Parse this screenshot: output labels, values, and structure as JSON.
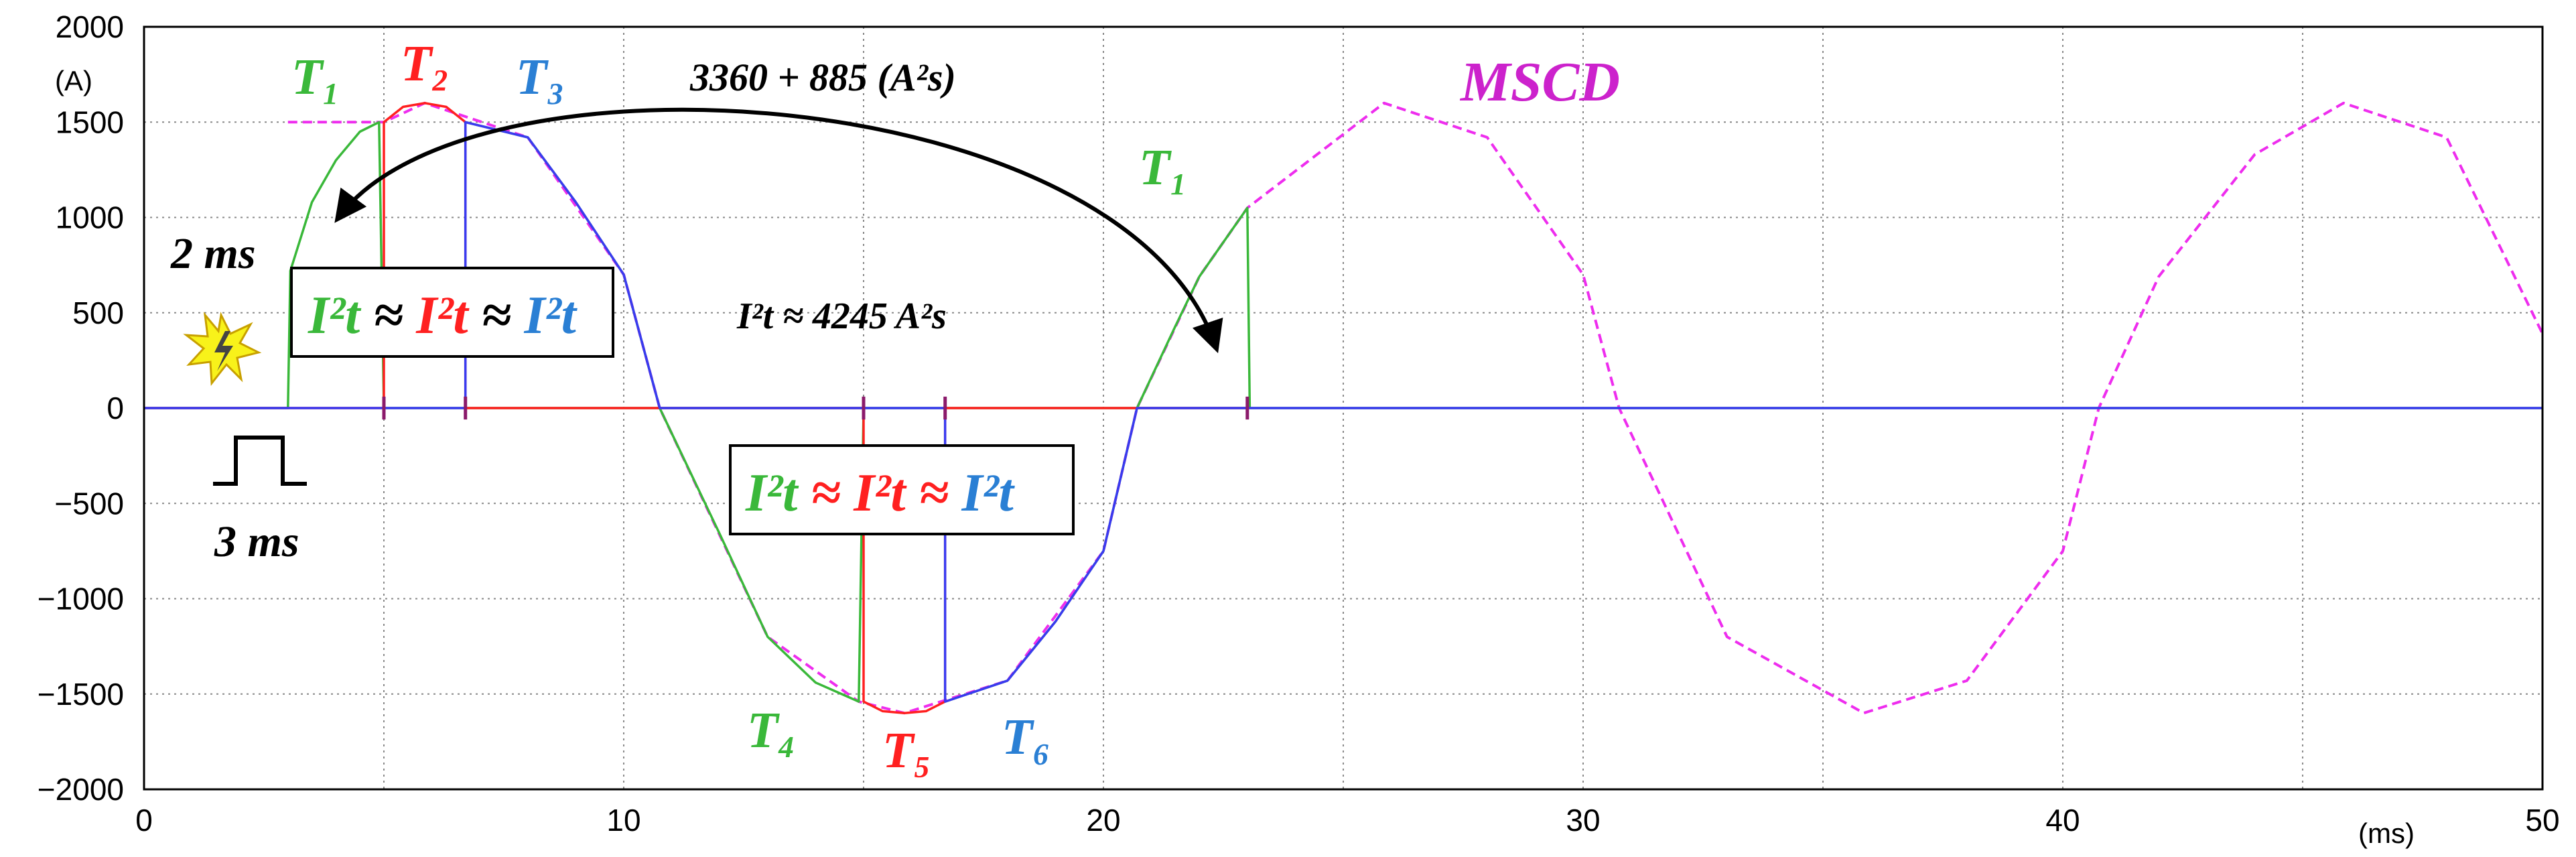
{
  "chart_data": {
    "type": "line",
    "title": "",
    "xlabel": "",
    "ylabel": "",
    "x_unit": "(ms)",
    "y_unit": "(A)",
    "xlim": [
      0,
      50
    ],
    "ylim": [
      -2000,
      2000
    ],
    "x_ticks": [
      "0",
      "10",
      "20",
      "30",
      "40",
      "50"
    ],
    "y_ticks": [
      "2000",
      "1500",
      "1000",
      "500",
      "0",
      "−500",
      "−1000",
      "−1500",
      "−2000"
    ],
    "grid": true,
    "series": [
      {
        "name": "MSCD",
        "color": "#ee2dee",
        "style": "dashed",
        "points": [
          [
            3,
            1500
          ],
          [
            5,
            1500
          ],
          [
            5.85,
            1600
          ],
          [
            8,
            1420
          ],
          [
            10,
            700
          ],
          [
            10.75,
            0
          ],
          [
            13,
            -1200
          ],
          [
            14.9,
            -1540
          ],
          [
            15.85,
            -1600
          ],
          [
            18,
            -1430
          ],
          [
            20,
            -750
          ],
          [
            20.7,
            0
          ],
          [
            22,
            690
          ],
          [
            23,
            1050
          ],
          [
            25.85,
            1600
          ],
          [
            28,
            1420
          ],
          [
            30,
            700
          ],
          [
            30.75,
            0
          ],
          [
            33,
            -1200
          ],
          [
            35.85,
            -1600
          ],
          [
            38,
            -1430
          ],
          [
            40,
            -750
          ],
          [
            40.75,
            0
          ],
          [
            42,
            690
          ],
          [
            44,
            1330
          ],
          [
            45.85,
            1600
          ],
          [
            48,
            1420
          ],
          [
            50,
            390
          ]
        ]
      },
      {
        "name": "T1",
        "color": "#3ab83a",
        "style": "solid",
        "points": [
          [
            0,
            0
          ],
          [
            3,
            0
          ],
          [
            3.05,
            720
          ],
          [
            3.5,
            1080
          ],
          [
            4,
            1300
          ],
          [
            4.5,
            1450
          ],
          [
            4.9,
            1500
          ],
          [
            5,
            0
          ],
          [
            5.3,
            0
          ],
          [
            15,
            0
          ],
          [
            23,
            0
          ]
        ]
      },
      {
        "name": "T4",
        "color": "#3ab83a",
        "style": "solid",
        "points": [
          [
            6.7,
            0
          ],
          [
            6.7,
            1500
          ],
          [
            8,
            1420
          ],
          [
            9,
            1080
          ],
          [
            10,
            700
          ],
          [
            10.75,
            0
          ],
          [
            12,
            -660
          ],
          [
            13,
            -1200
          ],
          [
            14,
            -1440
          ],
          [
            14.9,
            -1540
          ],
          [
            15,
            0
          ]
        ]
      },
      {
        "name": "T1",
        "color": "#3ab83a",
        "style": "solid",
        "points": [
          [
            16.7,
            0
          ],
          [
            16.7,
            -1540
          ],
          [
            18,
            -1430
          ],
          [
            19,
            -1120
          ],
          [
            20,
            -750
          ],
          [
            20.7,
            0
          ],
          [
            21.5,
            430
          ],
          [
            22,
            690
          ],
          [
            22.5,
            870
          ],
          [
            23,
            1050
          ],
          [
            23.05,
            0
          ],
          [
            50,
            0
          ]
        ]
      },
      {
        "name": "T2",
        "color": "#ff2020",
        "style": "solid",
        "points": [
          [
            0,
            0
          ],
          [
            5,
            0
          ],
          [
            5,
            1500
          ],
          [
            5.4,
            1580
          ],
          [
            5.85,
            1600
          ],
          [
            6.3,
            1580
          ],
          [
            6.7,
            1500
          ],
          [
            6.7,
            0
          ],
          [
            15,
            0
          ],
          [
            15,
            -1540
          ],
          [
            15.4,
            -1590
          ],
          [
            15.85,
            -1600
          ],
          [
            16.3,
            -1590
          ],
          [
            16.7,
            -1540
          ],
          [
            16.7,
            0
          ],
          [
            23,
            0
          ]
        ]
      },
      {
        "name": "T3",
        "color": "#3a3af0",
        "style": "solid",
        "points": [
          [
            0,
            0
          ],
          [
            6.7,
            0
          ],
          [
            6.7,
            1500
          ],
          [
            8,
            1420
          ],
          [
            9,
            1080
          ],
          [
            10,
            700
          ],
          [
            10.75,
            0
          ],
          [
            15,
            0
          ],
          [
            16.7,
            0
          ],
          [
            16.7,
            -1540
          ],
          [
            18,
            -1430
          ],
          [
            19,
            -1120
          ],
          [
            20,
            -750
          ],
          [
            20.7,
            0
          ],
          [
            50,
            0
          ]
        ]
      }
    ],
    "event_marks": [
      {
        "x": 5,
        "color": "#8b1a6b"
      },
      {
        "x": 6.7,
        "color": "#8b1a6b"
      },
      {
        "x": 15,
        "color": "#8b1a6b"
      },
      {
        "x": 16.7,
        "color": "#8b1a6b"
      },
      {
        "x": 23,
        "color": "#8b1a6b"
      }
    ]
  },
  "annotations": {
    "t1_a": "T₁",
    "t2_a": "T₂",
    "t3_a": "T₃",
    "t1_b": "T₁",
    "t4": "T₄",
    "t5": "T₅",
    "t6": "T₆",
    "mscd": "MSCD",
    "transfer": "3360 + 885 (A²s)",
    "total": "I²t ≈ 4245 A²s",
    "ms2": "2 ms",
    "ms3": "3 ms",
    "box_i2t": "I²t",
    "box_approx": " ≈ "
  },
  "colors": {
    "green": "#3ab83a",
    "red": "#ff2020",
    "blue": "#2a7fd4",
    "magenta": "#cc22cc",
    "black": "#000000"
  }
}
